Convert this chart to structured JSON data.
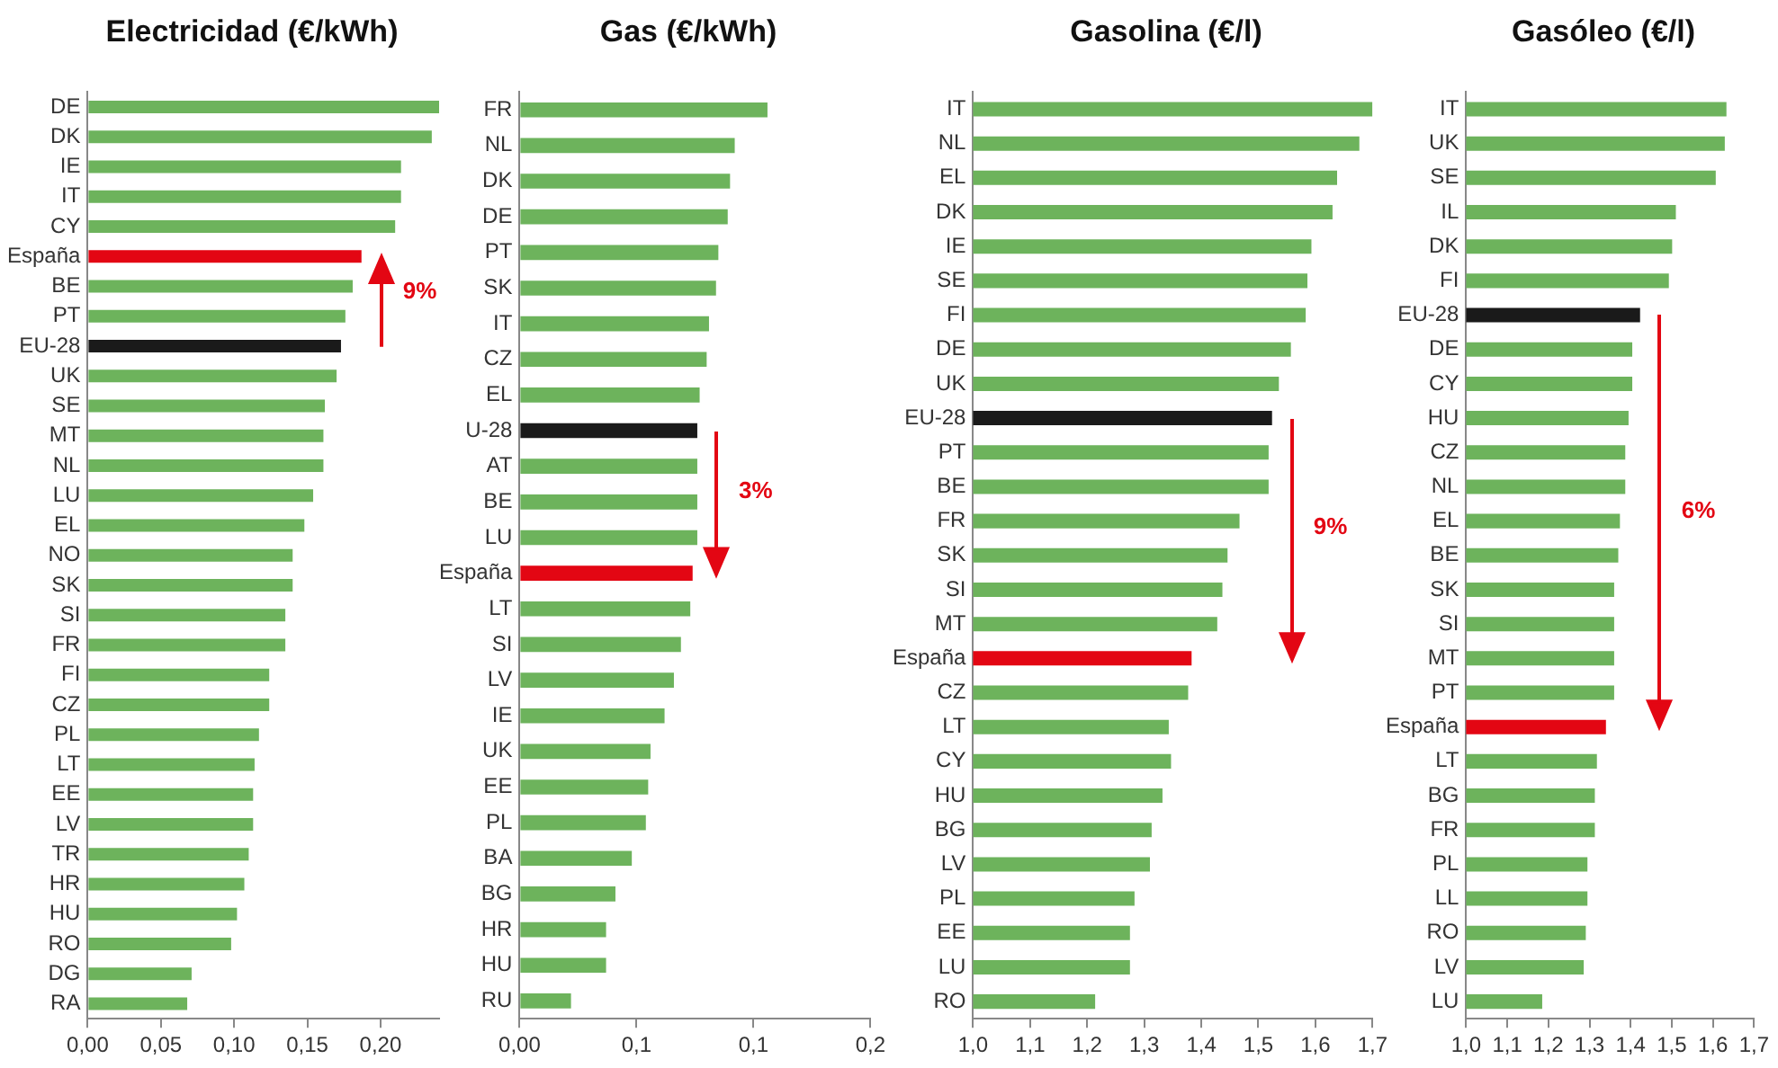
{
  "chart_data": [
    {
      "type": "bar",
      "orientation": "horizontal",
      "title": "Electricidad (€/kWh)",
      "categories": [
        "DE",
        "DK",
        "IE",
        "IT",
        "CY",
        "España",
        "BE",
        "PT",
        "EU-28",
        "UK",
        "SE",
        "MT",
        "NL",
        "LU",
        "EL",
        "NO",
        "SK",
        "SI",
        "FR",
        "FI",
        "CZ",
        "PL",
        "LT",
        "EE",
        "LV",
        "TR",
        "HR",
        "HU",
        "RO",
        "DG",
        "RA"
      ],
      "values": [
        0.24,
        0.235,
        0.214,
        0.214,
        0.21,
        0.187,
        0.181,
        0.176,
        0.173,
        0.17,
        0.162,
        0.161,
        0.161,
        0.154,
        0.148,
        0.14,
        0.14,
        0.135,
        0.135,
        0.124,
        0.124,
        0.117,
        0.114,
        0.113,
        0.113,
        0.11,
        0.107,
        0.102,
        0.098,
        0.071,
        0.068
      ],
      "colors": [
        "#6db35c",
        "#6db35c",
        "#6db35c",
        "#6db35c",
        "#6db35c",
        "#e30613",
        "#6db35c",
        "#6db35c",
        "#1a1a1a",
        "#6db35c",
        "#6db35c",
        "#6db35c",
        "#6db35c",
        "#6db35c",
        "#6db35c",
        "#6db35c",
        "#6db35c",
        "#6db35c",
        "#6db35c",
        "#6db35c",
        "#6db35c",
        "#6db35c",
        "#6db35c",
        "#6db35c",
        "#6db35c",
        "#6db35c",
        "#6db35c",
        "#6db35c",
        "#6db35c",
        "#6db35c",
        "#6db35c"
      ],
      "xlim": [
        0,
        0.24
      ],
      "xticks": [
        {
          "value": 0,
          "label": "0,00"
        },
        {
          "value": 0.05,
          "label": "0,05"
        },
        {
          "value": 0.1,
          "label": "0,10"
        },
        {
          "value": 0.15,
          "label": "0,15"
        },
        {
          "value": 0.2,
          "label": "0,20"
        }
      ],
      "annotations": [
        "9%"
      ]
    },
    {
      "type": "bar",
      "orientation": "horizontal",
      "title": "Gas (€/kWh)",
      "categories": [
        "FR",
        "NL",
        "DK",
        "DE",
        "PT",
        "SK",
        "IT",
        "CZ",
        "EL",
        "U-28",
        "AT",
        "BE",
        "LU",
        "España",
        "LT",
        "SI",
        "LV",
        "IE",
        "UK",
        "EE",
        "PL",
        "BA",
        "BG",
        "HR",
        "HU",
        "RU"
      ],
      "values": [
        0.106,
        0.092,
        0.09,
        0.089,
        0.085,
        0.084,
        0.081,
        0.08,
        0.077,
        0.076,
        0.076,
        0.076,
        0.076,
        0.074,
        0.073,
        0.069,
        0.066,
        0.062,
        0.056,
        0.055,
        0.054,
        0.048,
        0.041,
        0.037,
        0.037,
        0.022
      ],
      "colors": [
        "#6db35c",
        "#6db35c",
        "#6db35c",
        "#6db35c",
        "#6db35c",
        "#6db35c",
        "#6db35c",
        "#6db35c",
        "#6db35c",
        "#1a1a1a",
        "#6db35c",
        "#6db35c",
        "#6db35c",
        "#e30613",
        "#6db35c",
        "#6db35c",
        "#6db35c",
        "#6db35c",
        "#6db35c",
        "#6db35c",
        "#6db35c",
        "#6db35c",
        "#6db35c",
        "#6db35c",
        "#6db35c",
        "#6db35c"
      ],
      "xlim": [
        0,
        0.15
      ],
      "xticks": [
        {
          "value": 0,
          "label": "0,00"
        },
        {
          "value": 0.05,
          "label": "0,1"
        },
        {
          "value": 0.1,
          "label": "0,1"
        },
        {
          "value": 0.15,
          "label": "0,2"
        }
      ],
      "annotations": [
        "3%"
      ]
    },
    {
      "type": "bar",
      "orientation": "horizontal",
      "title": "Gasolina (€/l)",
      "categories": [
        "IT",
        "NL",
        "EL",
        "DK",
        "IE",
        "SE",
        "FI",
        "DE",
        "UK",
        "EU-28",
        "PT",
        "BE",
        "FR",
        "SK",
        "SI",
        "MT",
        "España",
        "CZ",
        "LT",
        "CY",
        "HU",
        "BG",
        "LV",
        "PL",
        "EE",
        "LU",
        "RO"
      ],
      "values": [
        1.7,
        1.677,
        1.638,
        1.63,
        1.593,
        1.586,
        1.583,
        1.557,
        1.536,
        1.524,
        1.518,
        1.518,
        1.467,
        1.446,
        1.437,
        1.428,
        1.383,
        1.377,
        1.343,
        1.347,
        1.332,
        1.313,
        1.31,
        1.283,
        1.275,
        1.275,
        1.214
      ],
      "colors": [
        "#6db35c",
        "#6db35c",
        "#6db35c",
        "#6db35c",
        "#6db35c",
        "#6db35c",
        "#6db35c",
        "#6db35c",
        "#6db35c",
        "#1a1a1a",
        "#6db35c",
        "#6db35c",
        "#6db35c",
        "#6db35c",
        "#6db35c",
        "#6db35c",
        "#e30613",
        "#6db35c",
        "#6db35c",
        "#6db35c",
        "#6db35c",
        "#6db35c",
        "#6db35c",
        "#6db35c",
        "#6db35c",
        "#6db35c",
        "#6db35c"
      ],
      "xlim": [
        1,
        1.7
      ],
      "xticks": [
        {
          "value": 1,
          "label": "1,0"
        },
        {
          "value": 1.1,
          "label": "1,1"
        },
        {
          "value": 1.2,
          "label": "1,2"
        },
        {
          "value": 1.3,
          "label": "1,3"
        },
        {
          "value": 1.4,
          "label": "1,4"
        },
        {
          "value": 1.5,
          "label": "1,5"
        },
        {
          "value": 1.6,
          "label": "1,6"
        },
        {
          "value": 1.7,
          "label": "1,7"
        }
      ],
      "annotations": [
        "9%"
      ]
    },
    {
      "type": "bar",
      "orientation": "horizontal",
      "title": "Gasóleo (€/l)",
      "categories": [
        "IT",
        "UK",
        "SE",
        "IL",
        "DK",
        "FI",
        "EU-28",
        "DE",
        "CY",
        "HU",
        "CZ",
        "NL",
        "EL",
        "BE",
        "SK",
        "SI",
        "MT",
        "PT",
        "España",
        "LT",
        "BG",
        "FR",
        "PL",
        "LL",
        "RO",
        "LV",
        "LU"
      ],
      "values": [
        1.633,
        1.629,
        1.607,
        1.51,
        1.501,
        1.493,
        1.423,
        1.404,
        1.404,
        1.395,
        1.387,
        1.387,
        1.374,
        1.37,
        1.36,
        1.36,
        1.36,
        1.36,
        1.34,
        1.318,
        1.313,
        1.313,
        1.295,
        1.295,
        1.291,
        1.286,
        1.185
      ],
      "colors": [
        "#6db35c",
        "#6db35c",
        "#6db35c",
        "#6db35c",
        "#6db35c",
        "#6db35c",
        "#1a1a1a",
        "#6db35c",
        "#6db35c",
        "#6db35c",
        "#6db35c",
        "#6db35c",
        "#6db35c",
        "#6db35c",
        "#6db35c",
        "#6db35c",
        "#6db35c",
        "#6db35c",
        "#e30613",
        "#6db35c",
        "#6db35c",
        "#6db35c",
        "#6db35c",
        "#6db35c",
        "#6db35c",
        "#6db35c",
        "#6db35c"
      ],
      "xlim": [
        1,
        1.7
      ],
      "xticks": [
        {
          "value": 1,
          "label": "1,0"
        },
        {
          "value": 1.1,
          "label": "1,1"
        },
        {
          "value": 1.2,
          "label": "1,2"
        },
        {
          "value": 1.3,
          "label": "1,3"
        },
        {
          "value": 1.4,
          "label": "1,4"
        },
        {
          "value": 1.5,
          "label": "1,5"
        },
        {
          "value": 1.6,
          "label": "1,6"
        },
        {
          "value": 1.7,
          "label": "1,7"
        }
      ],
      "annotations": [
        "6%"
      ]
    }
  ]
}
